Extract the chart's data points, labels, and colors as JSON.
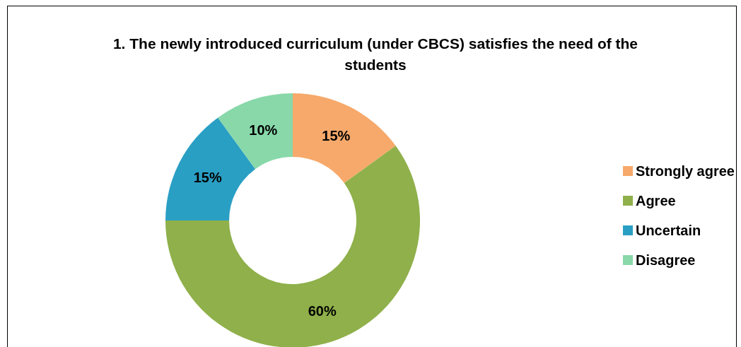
{
  "chart_data": {
    "type": "donut",
    "title": "1. The newly introduced curriculum (under CBCS) satisfies the need of the students",
    "categories": [
      "Strongly agree",
      "Agree",
      "Uncertain",
      "Disagree"
    ],
    "values": [
      15,
      60,
      15,
      10
    ],
    "value_labels": [
      "15%",
      "60%",
      "15%",
      "10%"
    ],
    "colors": [
      "#f6a96b",
      "#8fb04a",
      "#2a9fc4",
      "#88d8aa"
    ],
    "legend": "right"
  }
}
